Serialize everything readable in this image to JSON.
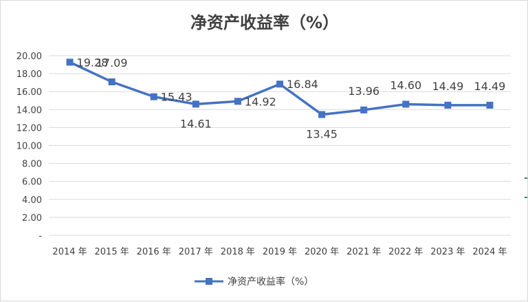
{
  "chart_data": {
    "type": "line",
    "title": "净资产收益率（%）",
    "categories": [
      "2014 年",
      "2015 年",
      "2016 年",
      "2017 年",
      "2018 年",
      "2019 年",
      "2020 年",
      "2021 年",
      "2022 年",
      "2023 年",
      "2024 年"
    ],
    "series": [
      {
        "name": "净资产收益率（%）",
        "values": [
          19.28,
          17.09,
          15.43,
          14.61,
          14.92,
          16.84,
          13.45,
          13.96,
          14.6,
          14.49,
          14.49
        ],
        "labels": [
          "19.28",
          "17.09",
          "15.43",
          "14.61",
          "14.92",
          "16.84",
          "13.45",
          "13.96",
          "14.60",
          "14.49",
          "14.49"
        ],
        "color": "#4472c4"
      }
    ],
    "yticks": [
      "-",
      "2.00",
      "4.00",
      "6.00",
      "8.00",
      "10.00",
      "12.00",
      "14.00",
      "16.00",
      "18.00",
      "20.00"
    ],
    "ylim": [
      0,
      20
    ],
    "grid": true,
    "legend_position": "bottom",
    "xlabel": "",
    "ylabel": ""
  }
}
